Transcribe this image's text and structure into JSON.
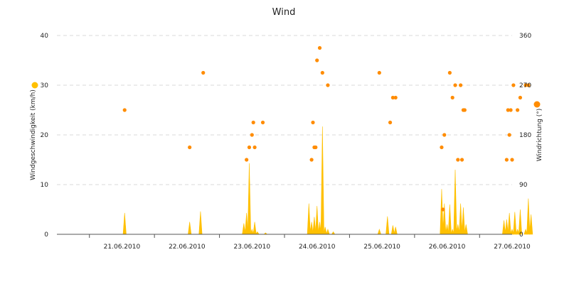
{
  "chart_data": {
    "type": "line",
    "title": "Wind",
    "grid": true,
    "x_axis": {
      "range": [
        "2010-06-20T12:00",
        "2010-06-27T12:00"
      ],
      "tick_labels": [
        "21.06.2010",
        "22.06.2010",
        "23.06.2010",
        "24.06.2010",
        "25.06.2010",
        "26.06.2010",
        "27.06.2010"
      ],
      "tick_values": [
        "2010-06-21T12:00",
        "2010-06-22T12:00",
        "2010-06-23T12:00",
        "2010-06-24T12:00",
        "2010-06-25T12:00",
        "2010-06-26T12:00",
        "2010-06-27T12:00"
      ]
    },
    "y_left": {
      "label": "Windgeschwindigkeit (km/h)",
      "range": [
        0,
        40
      ],
      "ticks": [
        0,
        10,
        20,
        30,
        40
      ]
    },
    "y_right": {
      "label": "Windrichtung (°)",
      "range": [
        0,
        360
      ],
      "ticks": [
        0,
        90,
        180,
        270,
        360
      ]
    },
    "series": [
      {
        "type": "area",
        "axis": "left",
        "color": "#ffc000",
        "x": [
          "2010-06-21T13:00",
          "2010-06-22T13:00",
          "2010-06-22T17:00",
          "2010-06-23T09:00",
          "2010-06-23T10:00",
          "2010-06-23T11:00",
          "2010-06-23T12:00",
          "2010-06-23T13:00",
          "2010-06-23T14:00",
          "2010-06-23T17:00",
          "2010-06-24T09:00",
          "2010-06-24T10:00",
          "2010-06-24T11:00",
          "2010-06-24T12:00",
          "2010-06-24T13:00",
          "2010-06-24T14:00",
          "2010-06-24T15:00",
          "2010-06-24T16:00",
          "2010-06-24T18:00",
          "2010-06-25T11:00",
          "2010-06-25T14:00",
          "2010-06-25T16:00",
          "2010-06-25T17:00",
          "2010-06-26T10:00",
          "2010-06-26T11:00",
          "2010-06-26T12:00",
          "2010-06-26T13:00",
          "2010-06-26T14:00",
          "2010-06-26T15:00",
          "2010-06-26T16:00",
          "2010-06-26T17:00",
          "2010-06-26T18:00",
          "2010-06-26T19:00",
          "2010-06-27T09:00",
          "2010-06-27T10:00",
          "2010-06-27T11:00",
          "2010-06-27T12:00",
          "2010-06-27T13:00",
          "2010-06-27T14:00",
          "2010-06-27T15:00",
          "2010-06-27T17:00",
          "2010-06-27T18:00",
          "2010-06-27T19:00"
        ],
        "values": [
          4.3,
          2.5,
          4.6,
          2.2,
          4.3,
          14.3,
          1.0,
          2.5,
          0.5,
          0.3,
          6.2,
          2.5,
          3.5,
          5.7,
          2.5,
          21.7,
          1.5,
          1.0,
          0.5,
          1.0,
          3.6,
          1.8,
          1.5,
          9.1,
          6.2,
          2.0,
          6.0,
          1.0,
          13.0,
          2.0,
          6.2,
          5.4,
          2.0,
          2.8,
          3.0,
          4.3,
          1.0,
          4.5,
          1.0,
          5.0,
          1.0,
          7.2,
          4.0
        ]
      },
      {
        "type": "scatter",
        "axis": "right",
        "color": "#ff8c00",
        "x": [
          "2010-06-21T13:00",
          "2010-06-22T13:00",
          "2010-06-22T18:00",
          "2010-06-23T10:00",
          "2010-06-23T11:00",
          "2010-06-23T12:00",
          "2010-06-23T12:30",
          "2010-06-23T13:00",
          "2010-06-23T16:00",
          "2010-06-24T10:00",
          "2010-06-24T10:30",
          "2010-06-24T11:00",
          "2010-06-24T11:30",
          "2010-06-24T12:00",
          "2010-06-24T13:00",
          "2010-06-24T14:00",
          "2010-06-24T16:00",
          "2010-06-25T11:00",
          "2010-06-25T15:00",
          "2010-06-25T16:00",
          "2010-06-25T17:00",
          "2010-06-26T10:00",
          "2010-06-26T10:30",
          "2010-06-26T11:00",
          "2010-06-26T13:00",
          "2010-06-26T14:00",
          "2010-06-26T15:00",
          "2010-06-26T16:00",
          "2010-06-26T17:00",
          "2010-06-26T17:30",
          "2010-06-26T18:00",
          "2010-06-26T18:30",
          "2010-06-27T10:00",
          "2010-06-27T10:30",
          "2010-06-27T11:00",
          "2010-06-27T11:30",
          "2010-06-27T12:00",
          "2010-06-27T12:30",
          "2010-06-27T14:00",
          "2010-06-27T15:00",
          "2010-06-27T17:00",
          "2010-06-27T18:00"
        ],
        "values": [
          225,
          157.5,
          292.5,
          135,
          157.5,
          180,
          202.5,
          157.5,
          202.5,
          135,
          202.5,
          157.5,
          157.5,
          315,
          337.5,
          292.5,
          270,
          292.5,
          202.5,
          247.5,
          247.5,
          157.5,
          45,
          180,
          292.5,
          247.5,
          270,
          135,
          270,
          135,
          225,
          225,
          135,
          225,
          180,
          225,
          135,
          270,
          225,
          247.5,
          270,
          270
        ]
      }
    ]
  }
}
